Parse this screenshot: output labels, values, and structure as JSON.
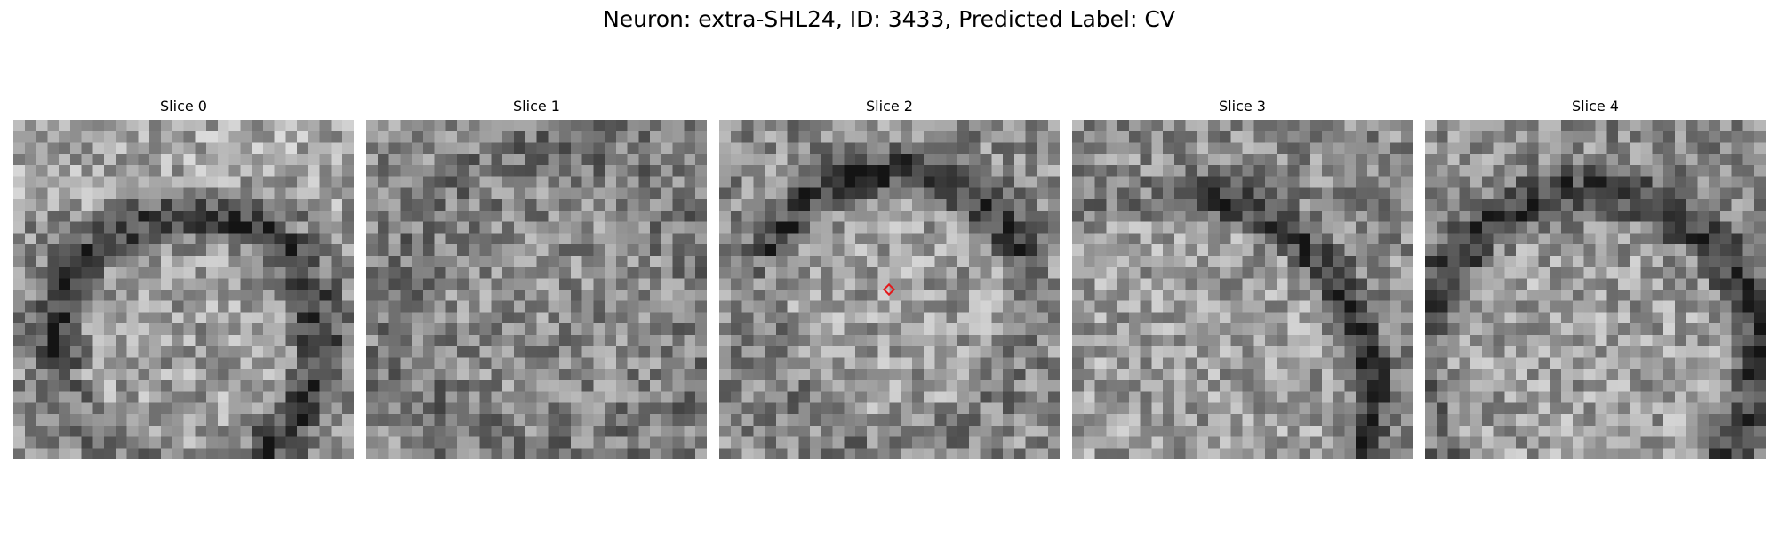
{
  "figure": {
    "title": "Neuron: extra-SHL24, ID: 3433, Predicted Label: CV"
  },
  "slices": [
    {
      "label": "Slice 0",
      "ring": "left",
      "marker": false
    },
    {
      "label": "Slice 1",
      "ring": "faint",
      "marker": false
    },
    {
      "label": "Slice 2",
      "ring": "top",
      "marker": true
    },
    {
      "label": "Slice 3",
      "ring": "right",
      "marker": false
    },
    {
      "label": "Slice 4",
      "ring": "arc",
      "marker": false
    }
  ],
  "colors": {
    "marker": "#e31a1c",
    "background": "#ffffff"
  }
}
